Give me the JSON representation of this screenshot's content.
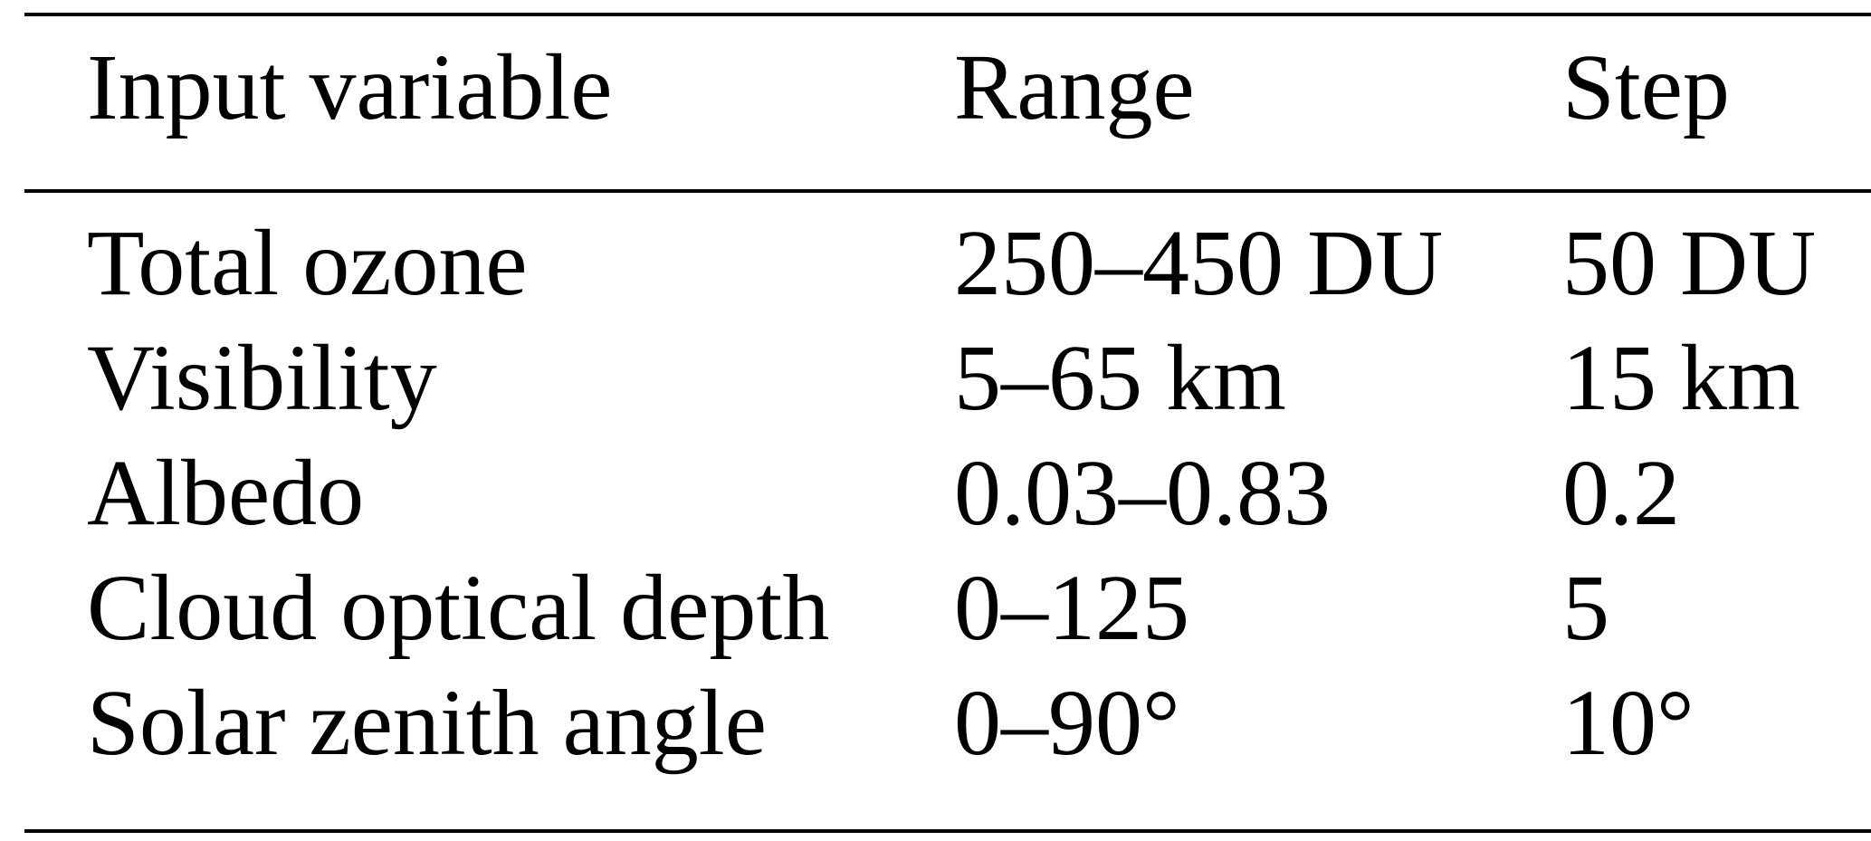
{
  "table": {
    "header": [
      "Input variable",
      "Range",
      "Step"
    ],
    "rows": [
      [
        "Total ozone",
        "250–450 DU",
        "50 DU"
      ],
      [
        "Visibility",
        "5–65 km",
        "15 km"
      ],
      [
        "Albedo",
        "0.03–0.83",
        "0.2"
      ],
      [
        "Cloud optical depth",
        "0–125",
        "5"
      ],
      [
        "Solar zenith angle",
        "0–90°",
        "10°"
      ]
    ]
  }
}
